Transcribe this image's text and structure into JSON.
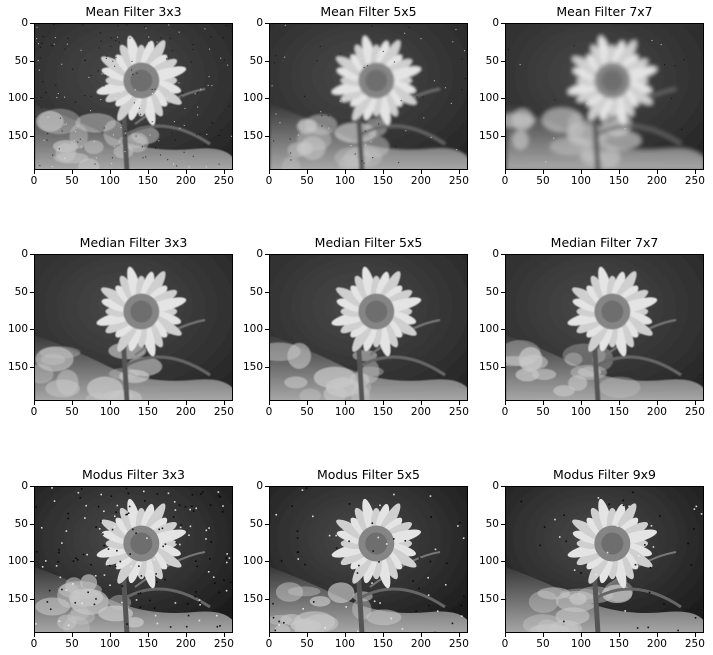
{
  "panels": [
    {
      "id": "mean-3x3",
      "title": "Mean Filter 3x3",
      "filter": "mean",
      "kernel": 3
    },
    {
      "id": "mean-5x5",
      "title": "Mean Filter 5x5",
      "filter": "mean",
      "kernel": 5
    },
    {
      "id": "mean-7x7",
      "title": "Mean Filter 7x7",
      "filter": "mean",
      "kernel": 7
    },
    {
      "id": "median-3x3",
      "title": "Median Filter 3x3",
      "filter": "median",
      "kernel": 3
    },
    {
      "id": "median-5x5",
      "title": "Median Filter 5x5",
      "filter": "median",
      "kernel": 5
    },
    {
      "id": "median-7x7",
      "title": "Median Filter 7x7",
      "filter": "median",
      "kernel": 7
    },
    {
      "id": "modus-3x3",
      "title": "Modus Filter 3x3",
      "filter": "modus",
      "kernel": 3
    },
    {
      "id": "modus-5x5",
      "title": "Modus Filter 5x5",
      "filter": "modus",
      "kernel": 5
    },
    {
      "id": "modus-9x9",
      "title": "Modus Filter 9x9",
      "filter": "modus",
      "kernel": 9
    }
  ],
  "axes": {
    "x_ticks": [
      "0",
      "50",
      "100",
      "150",
      "200",
      "250"
    ],
    "y_ticks": [
      "0",
      "50",
      "100",
      "150"
    ],
    "x_range": [
      0,
      262
    ],
    "y_range": [
      0,
      195
    ]
  },
  "image": {
    "subject": "sunflower",
    "colormap": "grayscale"
  }
}
